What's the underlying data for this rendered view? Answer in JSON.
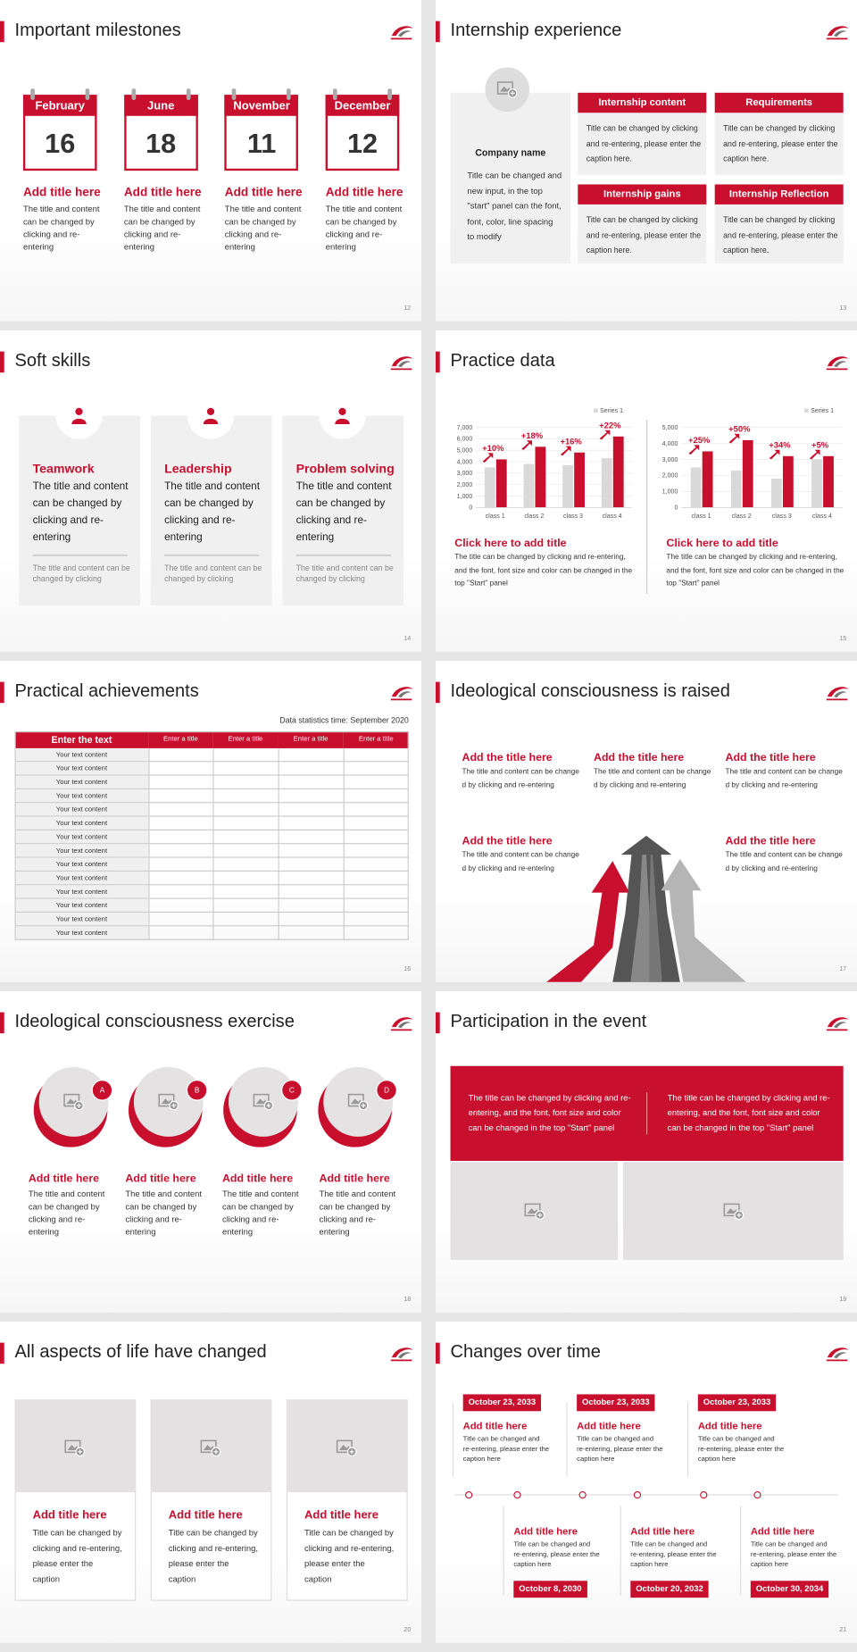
{
  "slides": [
    {
      "title": "Important milestones",
      "page": 12,
      "items": [
        {
          "month": "February",
          "day": 16,
          "heading": "Add title here",
          "text": "The title and content can be changed by clicking and re-entering"
        },
        {
          "month": "June",
          "day": 18,
          "heading": "Add title here",
          "text": "The title and content can be changed by clicking and re-entering"
        },
        {
          "month": "November",
          "day": 11,
          "heading": "Add title here",
          "text": "The title and content can be changed by clicking and re-entering"
        },
        {
          "month": "December",
          "day": 12,
          "heading": "Add title here",
          "text": "The title and content can be changed by clicking and re-entering"
        }
      ]
    },
    {
      "title": "Internship experience",
      "page": 13,
      "company": {
        "name": "Company name",
        "text": "Title can be changed and new input, in the top \"start\" panel can the font, font, color, line spacing to modify"
      },
      "boxes": [
        {
          "heading": "Internship content",
          "text": "Title can be changed by clicking and re-entering, please enter the caption here."
        },
        {
          "heading": "Requirements",
          "text": "Title can be changed by clicking and re-entering, please enter the caption here."
        },
        {
          "heading": "Internship gains",
          "text": "Title can be changed by clicking and re-entering, please enter the caption here."
        },
        {
          "heading": "Internship Reflection",
          "text": "Title can be changed by clicking and re-entering, please enter the caption here."
        }
      ]
    },
    {
      "title": "Soft skills",
      "page": 14,
      "cards": [
        {
          "heading": "Teamwork",
          "text": "The title and content can be changed by clicking and re-entering",
          "note": "The title and content can be changed by clicking"
        },
        {
          "heading": "Leadership",
          "text": "The title and content can be changed by clicking and re-entering",
          "note": "The title and content can be changed by clicking"
        },
        {
          "heading": "Problem solving",
          "text": "The title and content can be changed by clicking and re-entering",
          "note": "The title and content can be changed by clicking"
        }
      ]
    },
    {
      "title": "Practice data",
      "page": 15,
      "captions": [
        {
          "heading": "Click here to add title",
          "text": "The title can be changed by clicking and re-entering, and the font, font size and color can be changed in the top \"Start\" panel"
        },
        {
          "heading": "Click here to add title",
          "text": "The title can be changed by clicking and re-entering, and the font, font size and color can be changed in the top \"Start\" panel"
        }
      ]
    },
    {
      "title": "Practical achievements",
      "page": 16,
      "note": "Data statistics time: September 2020",
      "header": [
        "Enter the text",
        "Enter a title",
        "Enter a title",
        "Enter a title",
        "Enter a title"
      ],
      "rows": [
        "Your text content",
        "Your text content",
        "Your text content",
        "Your text content",
        "Your text content",
        "Your text content",
        "Your text content",
        "Your text content",
        "Your text content",
        "Your text content",
        "Your text content",
        "Your text content",
        "Your text content",
        "Your text content"
      ]
    },
    {
      "title": "Ideological consciousness is raised",
      "page": 17,
      "items": [
        {
          "heading": "Add the title here",
          "text": "The title and content can be changed by clicking and re-entering"
        },
        {
          "heading": "Add the title here",
          "text": "The title and content can be changed by clicking and re-entering"
        },
        {
          "heading": "Add the title here",
          "text": "The title and content can be changed by clicking and re-entering"
        },
        {
          "heading": "Add the title here",
          "text": "The title and content can be changed by clicking and re-entering"
        },
        {
          "heading": "Add the title here",
          "text": "The title and content can be changed by clicking and re-entering"
        }
      ]
    },
    {
      "title": "Ideological consciousness exercise",
      "page": 18,
      "items": [
        {
          "letter": "A",
          "heading": "Add title here",
          "text": "The title and content can be changed by clicking and re-entering"
        },
        {
          "letter": "B",
          "heading": "Add title here",
          "text": "The title and content can be changed by clicking and re-entering"
        },
        {
          "letter": "C",
          "heading": "Add title here",
          "text": "The title and content can be changed by clicking and re-entering"
        },
        {
          "letter": "D",
          "heading": "Add title here",
          "text": "The title and content can be changed by clicking and re-entering"
        }
      ]
    },
    {
      "title": "Participation in the event",
      "page": 19,
      "texts": [
        "The title can be changed by clicking and re-entering, and the font, font size and color can be changed in the top \"Start\" panel",
        "The title can be changed by clicking and re-entering, and the font, font size and color can be changed in the top \"Start\" panel"
      ]
    },
    {
      "title": "All aspects of life have changed",
      "page": 20,
      "cards": [
        {
          "heading": "Add title here",
          "text": "Title can be changed by clicking and re-entering, please enter the caption"
        },
        {
          "heading": "Add title here",
          "text": "Title can be changed by clicking and re-entering, please enter the caption"
        },
        {
          "heading": "Add title here",
          "text": "Title can be changed by clicking and re-entering, please enter the caption"
        }
      ]
    },
    {
      "title": "Changes over time",
      "page": 21,
      "events": [
        {
          "date": "October 23, 2033",
          "heading": "Add title here",
          "text": "Title can be changed and re-entering, please enter the caption here"
        },
        {
          "date": "October 8, 2030",
          "heading": "Add title here",
          "text": "Title can be changed and re-entering, please enter the caption here"
        },
        {
          "date": "October 23, 2033",
          "heading": "Add title here",
          "text": "Title can be changed and re-entering, please enter the caption here"
        },
        {
          "date": "October 20, 2032",
          "heading": "Add title here",
          "text": "Title can be changed and re-entering, please enter the caption here"
        },
        {
          "date": "October 23, 2033",
          "heading": "Add title here",
          "text": "Title can be changed and re-entering, please enter the caption here"
        },
        {
          "date": "October 30, 2034",
          "heading": "Add title here",
          "text": "Title can be changed and re-entering, please enter the caption here"
        }
      ]
    }
  ],
  "chart_data": [
    {
      "type": "bar",
      "categories": [
        "class 1",
        "class 2",
        "class 3",
        "class 4"
      ],
      "series": [
        {
          "name": "Series 1",
          "color": "#d9d9d9",
          "values": [
            3500,
            3800,
            3700,
            4300
          ]
        },
        {
          "color": "#c8102e",
          "values": [
            4200,
            5300,
            4800,
            6200
          ]
        }
      ],
      "annotations": [
        "+10%",
        "+18%",
        "+16%",
        "+22%"
      ],
      "ylim": [
        0,
        7000
      ],
      "yticks": [
        0,
        {
          "value": 1000,
          "label": "1,000"
        },
        {
          "value": 2000,
          "label": "2,000"
        },
        {
          "value": 3000,
          "label": "3,000"
        },
        {
          "value": 4000,
          "label": "4,000"
        },
        {
          "value": 5000,
          "label": "5,000"
        },
        {
          "value": 6000,
          "label": "6,000"
        },
        {
          "value": 7000,
          "label": "7,000"
        }
      ],
      "grid": true
    },
    {
      "type": "bar",
      "categories": [
        "class 1",
        "class 2",
        "class 3",
        "class 4"
      ],
      "series": [
        {
          "name": "Series 1",
          "color": "#d9d9d9",
          "values": [
            2500,
            2300,
            1800,
            3000
          ]
        },
        {
          "color": "#c8102e",
          "values": [
            3500,
            4200,
            3200,
            3200
          ]
        }
      ],
      "annotations": [
        "+25%",
        "+50%",
        "+34%",
        "+5%"
      ],
      "ylim": [
        0,
        5000
      ],
      "yticks": [
        0,
        {
          "value": 1000,
          "label": "1,000"
        },
        {
          "value": 2000,
          "label": "2,000"
        },
        {
          "value": 3000,
          "label": "3,000"
        },
        {
          "value": 4000,
          "label": "4,000"
        },
        {
          "value": 5000,
          "label": "5,000"
        }
      ],
      "grid": true
    }
  ]
}
